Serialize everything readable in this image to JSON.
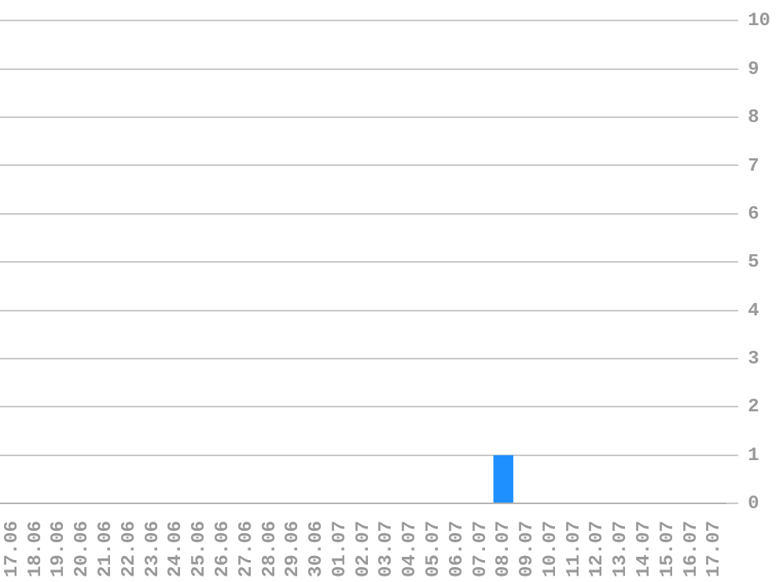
{
  "chart_data": {
    "type": "bar",
    "categories": [
      "17.06",
      "18.06",
      "19.06",
      "20.06",
      "21.06",
      "22.06",
      "23.06",
      "24.06",
      "25.06",
      "26.06",
      "27.06",
      "28.06",
      "29.06",
      "30.06",
      "01.07",
      "02.07",
      "03.07",
      "04.07",
      "05.07",
      "06.07",
      "07.07",
      "08.07",
      "09.07",
      "10.07",
      "11.07",
      "12.07",
      "13.07",
      "14.07",
      "15.07",
      "16.07",
      "17.07"
    ],
    "values": [
      0,
      0,
      0,
      0,
      0,
      0,
      0,
      0,
      0,
      0,
      0,
      0,
      0,
      0,
      0,
      0,
      0,
      0,
      0,
      0,
      0,
      1,
      0,
      0,
      0,
      0,
      0,
      0,
      0,
      0,
      0
    ],
    "color": "#1e90ff",
    "ylim": [
      0,
      10
    ],
    "yticks": [
      0,
      1,
      2,
      3,
      4,
      5,
      6,
      7,
      8,
      9,
      10
    ],
    "grid": "y",
    "legend": false
  }
}
